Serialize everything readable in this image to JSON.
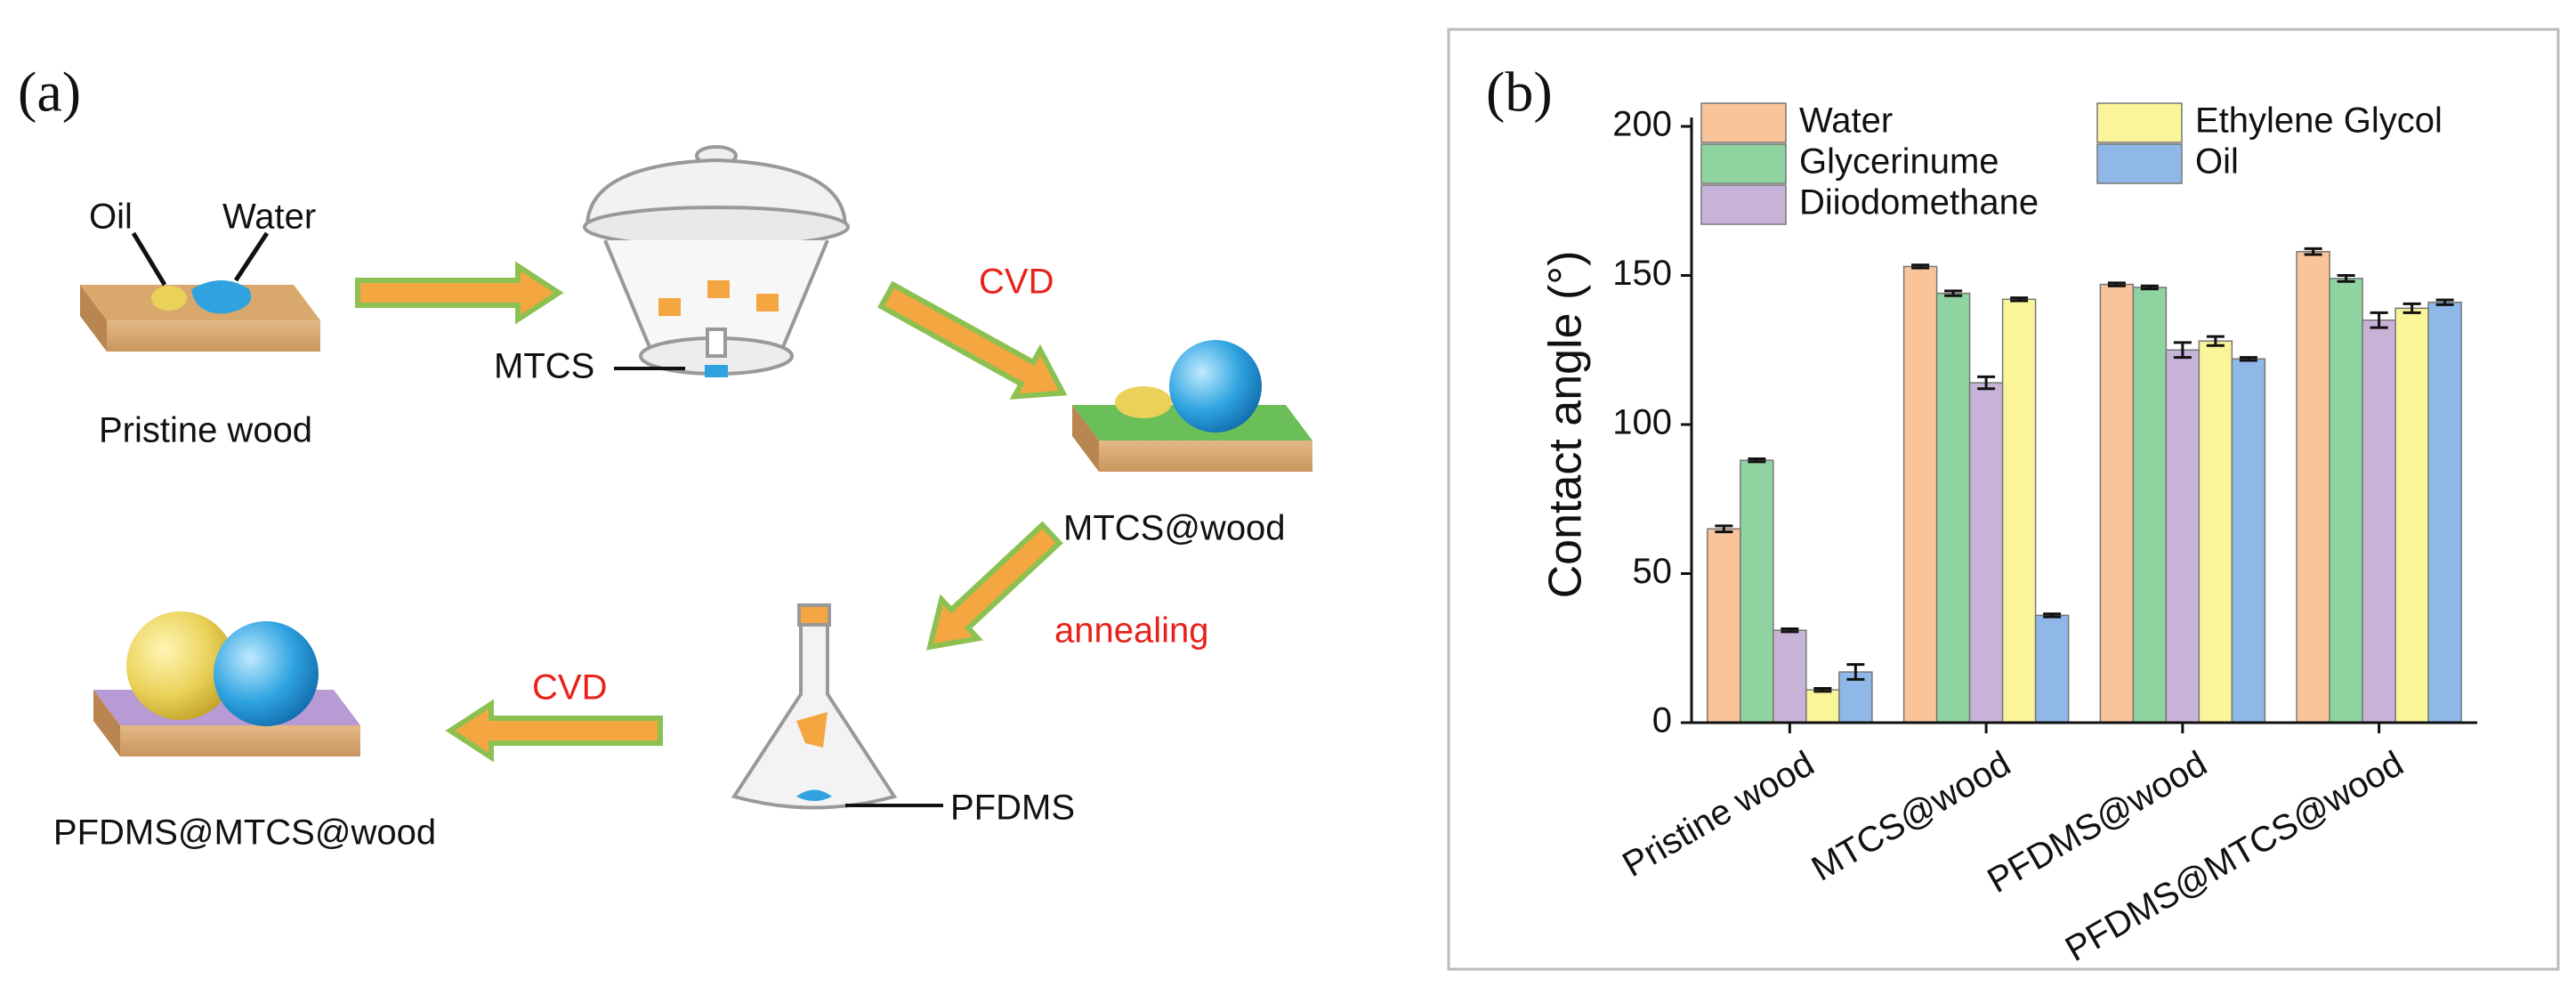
{
  "panel_a": {
    "label": "(a)",
    "oil": "Oil",
    "water": "Water",
    "pristine_wood": "Pristine wood",
    "mtcs": "MTCS",
    "cvd_1": "CVD",
    "mtcs_wood": "MTCS@wood",
    "annealing": "annealing",
    "pfdms": "PFDMS",
    "cvd_2": "CVD",
    "pfdms_mtcs_wood": "PFDMS@MTCS@wood"
  },
  "chart_data": {
    "type": "bar",
    "panel_label": "(b)",
    "y_label": "Contact angle (°)",
    "categories": [
      "Pristine wood",
      "MTCS@wood",
      "PFDMS@wood",
      "PFDMS@MTCS@wood"
    ],
    "series": [
      {
        "name": "Water",
        "color": "#f9c49a",
        "values": [
          65,
          153,
          147,
          158
        ],
        "errors": [
          1,
          0.5,
          0.5,
          1
        ]
      },
      {
        "name": "Glycerinume",
        "color": "#8fd4a0",
        "values": [
          88,
          144,
          146,
          149
        ],
        "errors": [
          0.5,
          0.8,
          0.5,
          1
        ]
      },
      {
        "name": "Diiodomethane",
        "color": "#c8b3d8",
        "values": [
          31,
          114,
          125,
          135
        ],
        "errors": [
          0.5,
          2,
          2.5,
          2.5
        ]
      },
      {
        "name": "Ethylene Glycol",
        "color": "#fbf59a",
        "values": [
          11,
          142,
          128,
          139
        ],
        "errors": [
          0.5,
          0.5,
          1.5,
          1.5
        ]
      },
      {
        "name": "Oil",
        "color": "#8fb8e8",
        "values": [
          17,
          36,
          122,
          141
        ],
        "errors": [
          2.5,
          0.5,
          0.5,
          0.8
        ]
      }
    ],
    "ylim": [
      0,
      200
    ],
    "yticks": [
      0,
      50,
      100,
      150,
      200
    ]
  }
}
